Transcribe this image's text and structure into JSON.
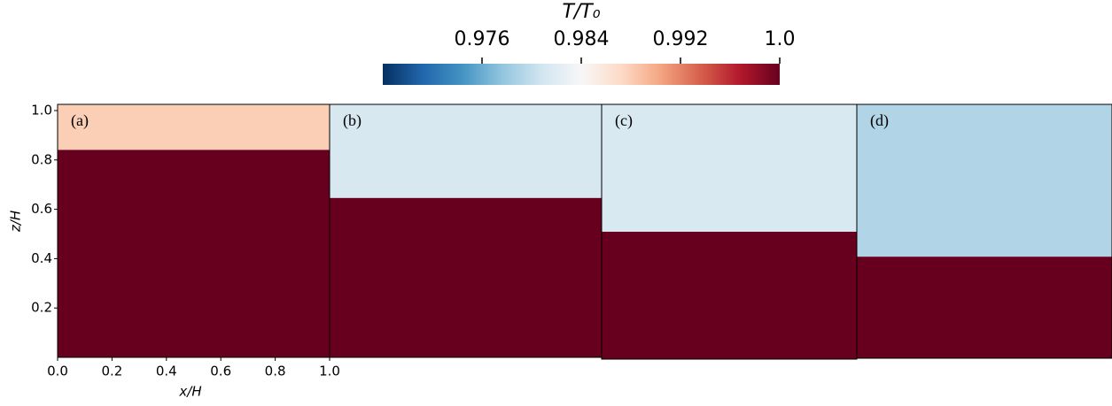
{
  "chart_data": {
    "type": "field",
    "colorbar": {
      "label": "T/T₀",
      "lim": [
        0.968,
        1.0
      ],
      "ticks": [
        0.976,
        0.984,
        0.992,
        {
          "value": 1.0,
          "label": "1.0"
        }
      ]
    },
    "xlabel": "x/H",
    "ylabel": "z/H",
    "xlim": [
      0,
      1
    ],
    "ylim": [
      0,
      1
    ],
    "xticks": [
      {
        "value": 0.0,
        "label": "0.0"
      },
      0.2,
      0.4,
      0.6,
      0.8,
      {
        "value": 1.0,
        "label": "1.0"
      }
    ],
    "yticks": [
      0.2,
      0.4,
      0.6,
      0.8,
      {
        "value": 1.0,
        "label": "1.0"
      }
    ],
    "panels": [
      {
        "label": "(a)",
        "interface": 0.82,
        "upper_value": 0.988,
        "lower_value": 1.0
      },
      {
        "label": "(b)",
        "interface": 0.63,
        "upper_value": 0.9814,
        "lower_value": 1.0
      },
      {
        "label": "(c)",
        "interface": 0.5,
        "upper_value": 0.9815,
        "lower_value": 1.0
      },
      {
        "label": "(d)",
        "interface": 0.4,
        "upper_value": 0.9792,
        "lower_value": 1.0
      }
    ]
  }
}
